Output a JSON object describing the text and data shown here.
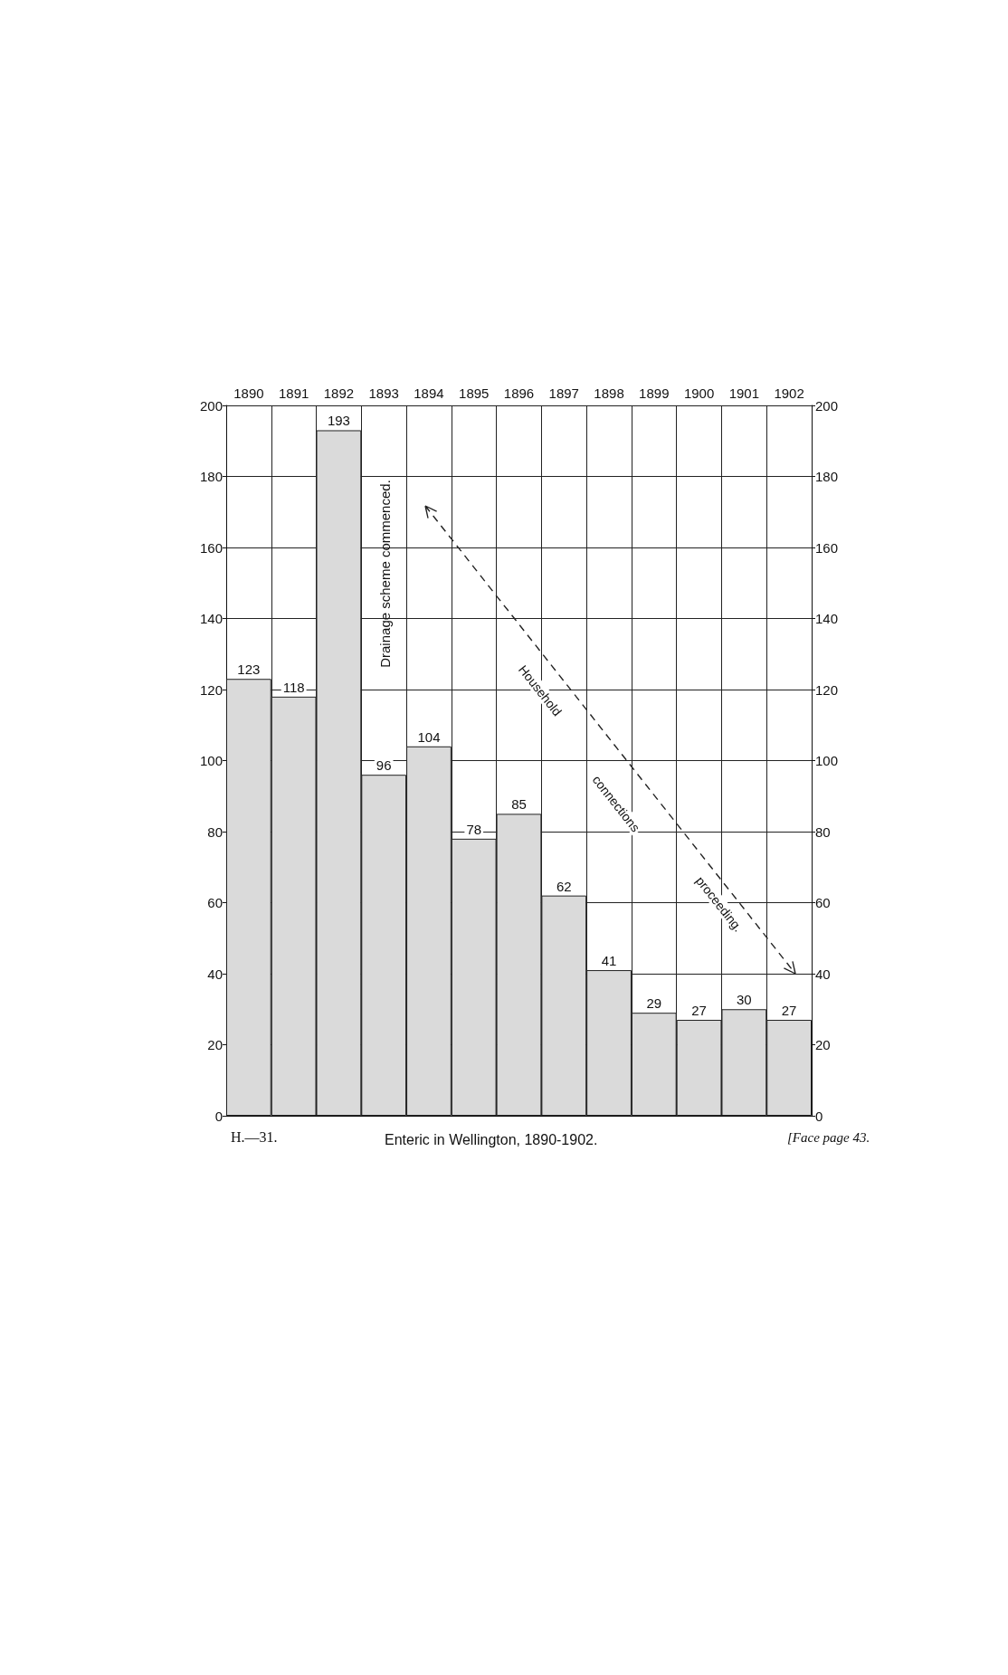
{
  "chart_data": {
    "type": "bar",
    "title": "Enteric in Wellington, 1890-1902.",
    "categories": [
      "1890",
      "1891",
      "1892",
      "1893",
      "1894",
      "1895",
      "1896",
      "1897",
      "1898",
      "1899",
      "1900",
      "1901",
      "1902"
    ],
    "values": [
      123,
      118,
      193,
      96,
      104,
      78,
      85,
      62,
      41,
      29,
      27,
      30,
      27
    ],
    "color": "#dadada",
    "ylim": [
      0,
      200
    ],
    "yticks": [
      0,
      20,
      40,
      60,
      80,
      100,
      120,
      140,
      160,
      180,
      200
    ],
    "y2lim": [
      0,
      200
    ],
    "y2ticks": [
      0,
      20,
      40,
      60,
      80,
      100,
      120,
      140,
      160,
      180,
      200
    ],
    "grid": true,
    "data_labels": true,
    "annotations": [
      "Drainage scheme commenced.",
      "Household",
      "connections",
      "proceeding.",
      "H.—31.",
      "[Face page 43."
    ]
  }
}
